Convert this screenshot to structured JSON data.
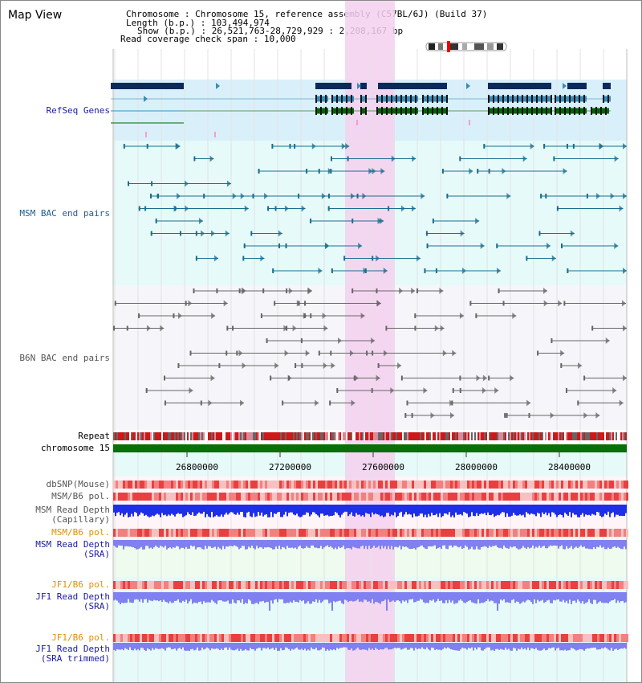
{
  "panel_title": "Map View",
  "info": {
    "chromosome_label": "Chromosome",
    "chromosome_value": "Chromosome 15, reference assembly (C57BL/6J) (Build 37)",
    "length_label": "Length (b.p.)",
    "length_value": "103,494,974",
    "show_label": "Show (b.p.)",
    "show_value": "26,521,763-28,729,929 : 2,208,167 bp",
    "coverage_label": "Read coverage check span",
    "coverage_value": "10,000"
  },
  "tracks": {
    "refseq": "RefSeq Genes",
    "msm_bac": "MSM BAC end pairs",
    "b6n_bac": "B6N BAC end pairs",
    "repeat": "Repeat",
    "chromosome": "chromosome 15",
    "dbsnp": "dbSNP(Mouse)",
    "msm_b6_pol_1": "MSM/B6 pol.",
    "msm_read_depth_cap_1": "MSM Read Depth",
    "msm_read_depth_cap_2": "(Capillary)",
    "msm_b6_pol_2": "MSM/B6 pol.",
    "msm_read_depth_sra_1": "MSM Read Depth",
    "msm_read_depth_sra_2": "(SRA)",
    "jf1_b6_pol_1": "JF1/B6 pol.",
    "jf1_read_depth_sra_1": "JF1 Read Depth",
    "jf1_read_depth_sra_2": "(SRA)",
    "jf1_b6_pol_2": "JF1/B6 pol.",
    "jf1_read_depth_trim_1": "JF1 Read Depth",
    "jf1_read_depth_trim_2": "(SRA trimmed)"
  },
  "axis": {
    "ticks": [
      "26800000",
      "27200000",
      "27600000",
      "28000000",
      "28400000"
    ]
  },
  "colors": {
    "refseq_bg": "#d9f0fb",
    "msm_bg": "#e6fafa",
    "b6n_bg": "#f5f5fa",
    "highlight": "#f5d0ef",
    "gene_dark": "#0a2a5c",
    "gene_teal": "#3a8cb8",
    "gene_green": "#006400",
    "msm_line": "#1a6e8e",
    "b6n_line": "#666666",
    "chromosome": "#0a6e0a",
    "depth_dark": "#1f2ee8",
    "depth_light": "#8080f0",
    "label_navy": "#1a1aa0",
    "label_orange": "#e09000",
    "label_teal": "#1a5e8e"
  }
}
